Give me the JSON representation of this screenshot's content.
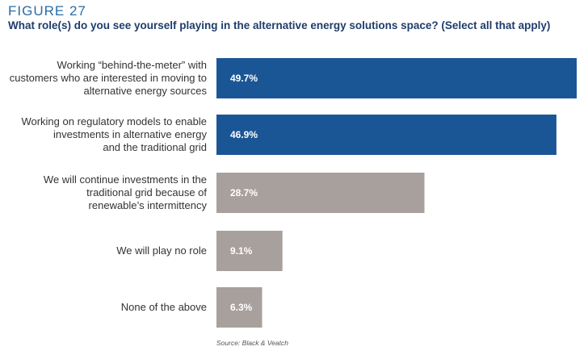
{
  "figure_label": "FIGURE 27",
  "title": "What role(s) do you see yourself playing in the alternative energy solutions space? (Select all that apply)",
  "source": "Source: Black & Veatch",
  "chart_data": {
    "type": "bar",
    "orientation": "horizontal",
    "categories": [
      [
        "Working “behind-the-meter” with",
        "customers who are interested in moving to",
        "alternative energy sources"
      ],
      [
        "Working on regulatory models to enable",
        "investments in alternative energy",
        "and the traditional grid"
      ],
      [
        "We will continue investments in the",
        "traditional grid because of",
        "renewable’s intermittency"
      ],
      [
        "We will play no role"
      ],
      [
        "None of the above"
      ]
    ],
    "values": [
      49.7,
      46.9,
      28.7,
      9.1,
      6.3
    ],
    "value_labels": [
      "49.7%",
      "46.9%",
      "28.7%",
      "9.1%",
      "6.3%"
    ],
    "bar_colors": [
      "#1a5696",
      "#1a5696",
      "#a7a09c",
      "#a7a09c",
      "#a7a09c"
    ],
    "grid": false,
    "legend": "none"
  }
}
